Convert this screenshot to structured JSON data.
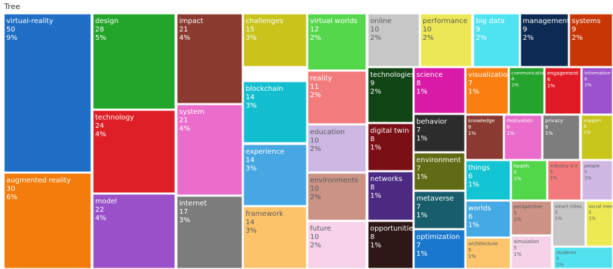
{
  "title": "Tree",
  "chart_data": {
    "type": "treemap",
    "items": [
      {
        "label": "virtual-reality",
        "count": 50,
        "percent": "9%",
        "color": "#1f6fc7"
      },
      {
        "label": "augmented reality",
        "count": 30,
        "percent": "6%",
        "color": "#f47c0c"
      },
      {
        "label": "design",
        "count": 28,
        "percent": "5%",
        "color": "#22a52a"
      },
      {
        "label": "technology",
        "count": 24,
        "percent": "4%",
        "color": "#de1f26"
      },
      {
        "label": "model",
        "count": 22,
        "percent": "4%",
        "color": "#9a50c9"
      },
      {
        "label": "impact",
        "count": 21,
        "percent": "4%",
        "color": "#8b3a30"
      },
      {
        "label": "system",
        "count": 21,
        "percent": "4%",
        "color": "#ea6dcb"
      },
      {
        "label": "internet",
        "count": 17,
        "percent": "3%",
        "color": "#7c7c7c"
      },
      {
        "label": "challenges",
        "count": 15,
        "percent": "3%",
        "color": "#c9c31c"
      },
      {
        "label": "blockchain",
        "count": 14,
        "percent": "3%",
        "color": "#13bfcf"
      },
      {
        "label": "experience",
        "count": 14,
        "percent": "3%",
        "color": "#46a7e3"
      },
      {
        "label": "framework",
        "count": 14,
        "percent": "3%",
        "color": "#fcc36a"
      },
      {
        "label": "virtual worlds",
        "count": 12,
        "percent": "2%",
        "color": "#55d74b"
      },
      {
        "label": "reality",
        "count": 11,
        "percent": "2%",
        "color": "#f27c7c"
      },
      {
        "label": "education",
        "count": 10,
        "percent": "2%",
        "color": "#cdb7e3"
      },
      {
        "label": "environments",
        "count": 10,
        "percent": "2%",
        "color": "#cb9385"
      },
      {
        "label": "future",
        "count": 10,
        "percent": "2%",
        "color": "#f6d3ea"
      },
      {
        "label": "online",
        "count": 10,
        "percent": "2%",
        "color": "#c7c7c7"
      },
      {
        "label": "technologies",
        "count": 9,
        "percent": "2%",
        "color": "#114515"
      },
      {
        "label": "digital twin",
        "count": 8,
        "percent": "1%",
        "color": "#7a0f15"
      },
      {
        "label": "networks",
        "count": 8,
        "percent": "1%",
        "color": "#4c2a82"
      },
      {
        "label": "opportunities",
        "count": 8,
        "percent": "1%",
        "color": "#2e1817"
      },
      {
        "label": "performance",
        "count": 10,
        "percent": "2%",
        "color": "#ece855"
      },
      {
        "label": "big data",
        "count": 9,
        "percent": "2%",
        "color": "#4fe3ef"
      },
      {
        "label": "management",
        "count": 9,
        "percent": "2%",
        "color": "#0d2a52"
      },
      {
        "label": "systems",
        "count": 9,
        "percent": "2%",
        "color": "#c83606"
      },
      {
        "label": "science",
        "count": 8,
        "percent": "1%",
        "color": "#d81aa6"
      },
      {
        "label": "behavior",
        "count": 7,
        "percent": "1%",
        "color": "#2c2c2c"
      },
      {
        "label": "environment",
        "count": 7,
        "percent": "1%",
        "color": "#616a14"
      },
      {
        "label": "metaverse",
        "count": 7,
        "percent": "1%",
        "color": "#185d6c"
      },
      {
        "label": "optimization",
        "count": 7,
        "percent": "1%",
        "color": "#1978cd"
      },
      {
        "label": "visualization",
        "count": 7,
        "percent": "1%",
        "color": "#fb7f10"
      },
      {
        "label": "communication",
        "count": 6,
        "percent": "1%",
        "color": "#24a32d"
      },
      {
        "label": "engagement",
        "count": 6,
        "percent": "1%",
        "color": "#e01b25"
      },
      {
        "label": "information",
        "count": 6,
        "percent": "1%",
        "color": "#9b52cc"
      },
      {
        "label": "knowledge",
        "count": 6,
        "percent": "1%",
        "color": "#8a3a30"
      },
      {
        "label": "motivation",
        "count": 6,
        "percent": "1%",
        "color": "#ea6dcb"
      },
      {
        "label": "privacy",
        "count": 6,
        "percent": "1%",
        "color": "#7d7d7d"
      },
      {
        "label": "support",
        "count": 6,
        "percent": "1%",
        "color": "#c8c61b"
      },
      {
        "label": "things",
        "count": 6,
        "percent": "1%",
        "color": "#13c5d3"
      },
      {
        "label": "health",
        "count": 5,
        "percent": "1%",
        "color": "#52d64a"
      },
      {
        "label": "industry 4 0",
        "count": 5,
        "percent": "1%",
        "color": "#f27a7a"
      },
      {
        "label": "people",
        "count": 5,
        "percent": "1%",
        "color": "#cfb9e4"
      },
      {
        "label": "worlds",
        "count": 6,
        "percent": "1%",
        "color": "#45a9e3"
      },
      {
        "label": "perspective",
        "count": 5,
        "percent": "1%",
        "color": "#cc9386"
      },
      {
        "label": "smart cities",
        "count": 5,
        "percent": "1%",
        "color": "#c6c6c6"
      },
      {
        "label": "social media",
        "count": 5,
        "percent": "1%",
        "color": "#ede953"
      },
      {
        "label": "architecture",
        "count": 5,
        "percent": "1%",
        "color": "#fcc46b"
      },
      {
        "label": "simulation",
        "count": 5,
        "percent": "1%",
        "color": "#f6d2e9"
      },
      {
        "label": "students",
        "count": 5,
        "percent": "1%",
        "color": "#52e2ef"
      }
    ]
  }
}
